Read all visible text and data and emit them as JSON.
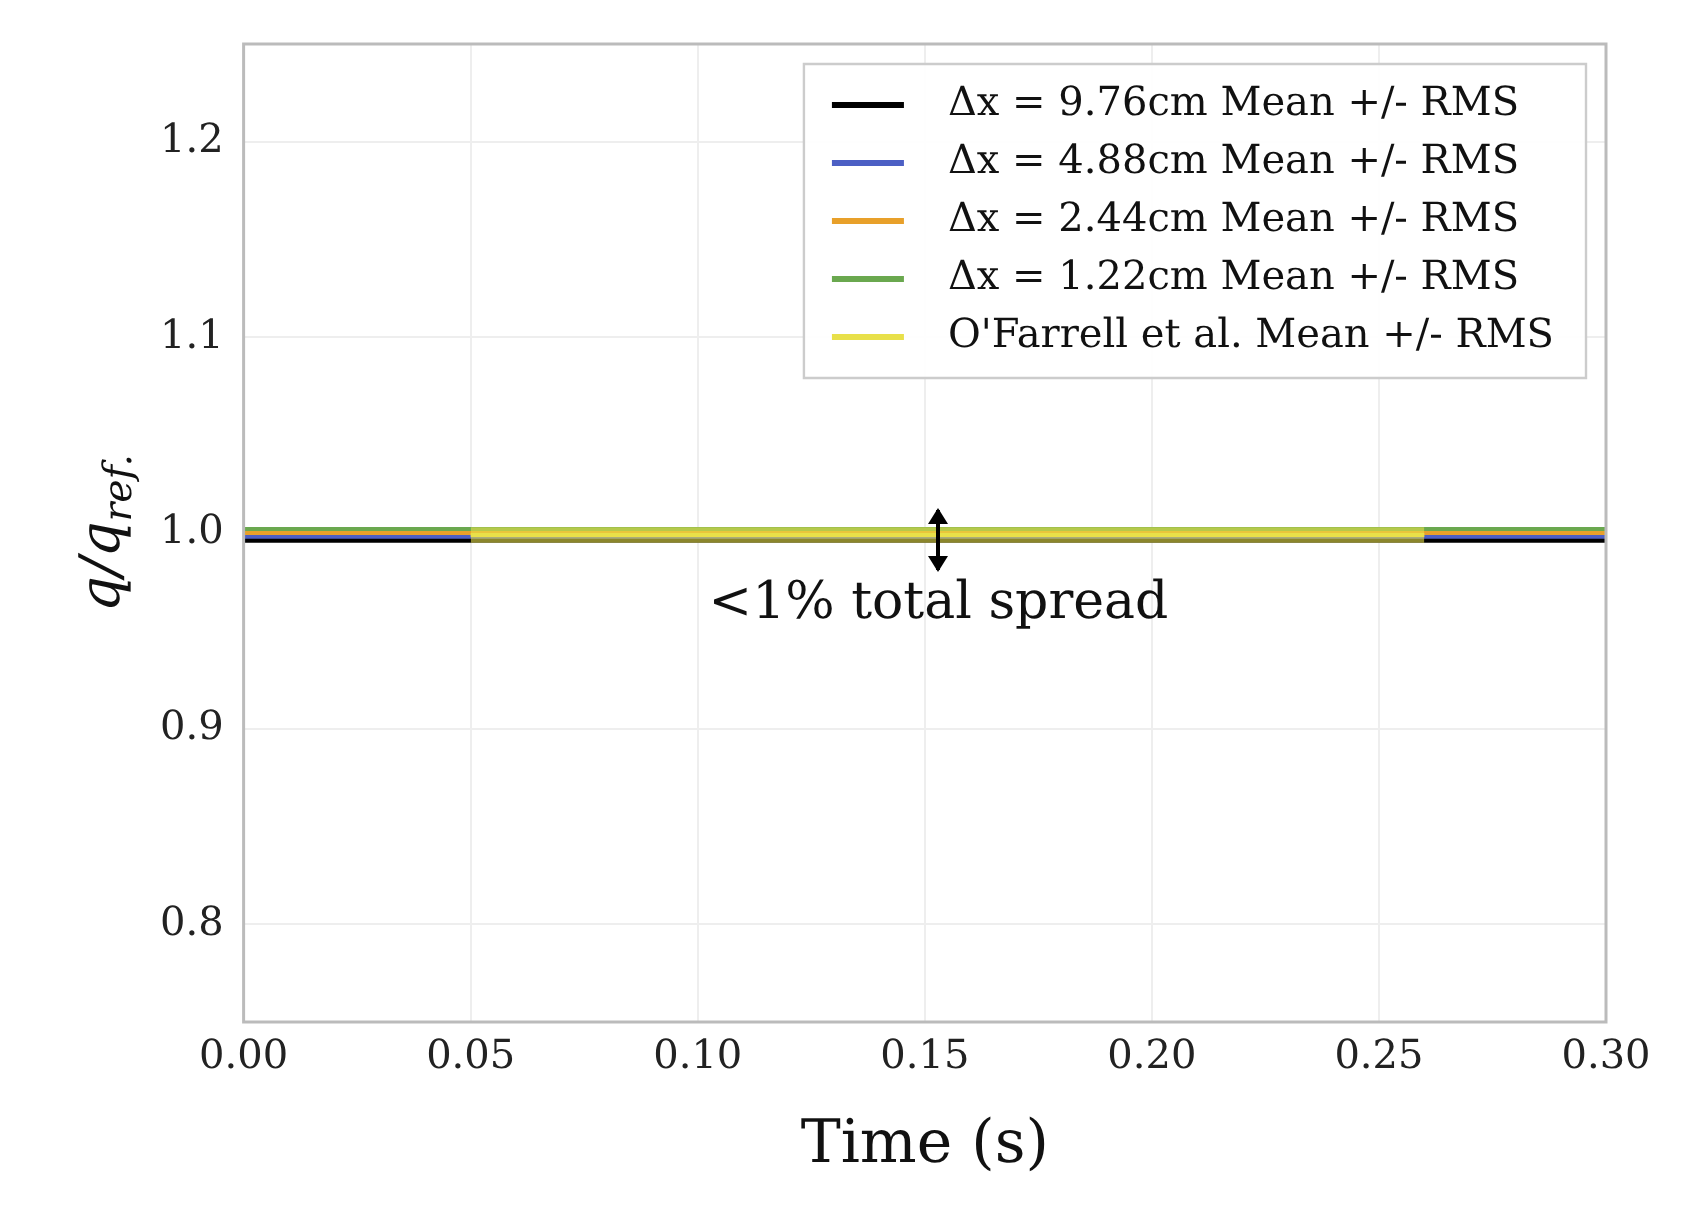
{
  "chart_data": {
    "type": "line",
    "xlabel": "Time (s)",
    "ylabel": "q/q$_{ref.}$",
    "x": [
      0,
      0.3
    ],
    "series": [
      {
        "name": "Δx = 9.76cm Mean +/- RMS",
        "color": "#000000",
        "values": [
          0.996,
          0.996
        ]
      },
      {
        "name": "Δx = 4.88cm Mean +/- RMS",
        "color": "#4c5fc4",
        "values": [
          0.998,
          0.998
        ]
      },
      {
        "name": "Δx = 2.44cm Mean +/- RMS",
        "color": "#e8a02a",
        "values": [
          1.0,
          1.0
        ]
      },
      {
        "name": "Δx = 1.22cm Mean +/- RMS",
        "color": "#6aa84f",
        "values": [
          1.002,
          1.002
        ]
      },
      {
        "name": "O'Farrell et al. Mean +/- RMS",
        "color": "#e8e04a",
        "x": [
          0.05,
          0.26
        ],
        "values": [
          0.999,
          0.999
        ],
        "lower": [
          0.995,
          0.995
        ],
        "upper": [
          1.003,
          1.003
        ]
      }
    ],
    "xlim": [
      0,
      0.3
    ],
    "xticks": [
      {
        "value": 0,
        "label": "0.00"
      },
      {
        "value": 0.05,
        "label": "0.05"
      },
      {
        "value": 0.1,
        "label": "0.10"
      },
      {
        "value": 0.15,
        "label": "0.15"
      },
      {
        "value": 0.2,
        "label": "0.20"
      },
      {
        "value": 0.25,
        "label": "0.25"
      },
      {
        "value": 0.3,
        "label": "0.30"
      }
    ],
    "ylim": [
      0.75,
      1.25
    ],
    "yticks": [
      0.8,
      0.9,
      {
        "value": 1.0,
        "label": "1.0"
      },
      1.1,
      1.2
    ],
    "annotations": [
      "<1% total spread"
    ],
    "grid": true,
    "legend": "top right",
    "marker": "none",
    "line_style": "solid"
  }
}
